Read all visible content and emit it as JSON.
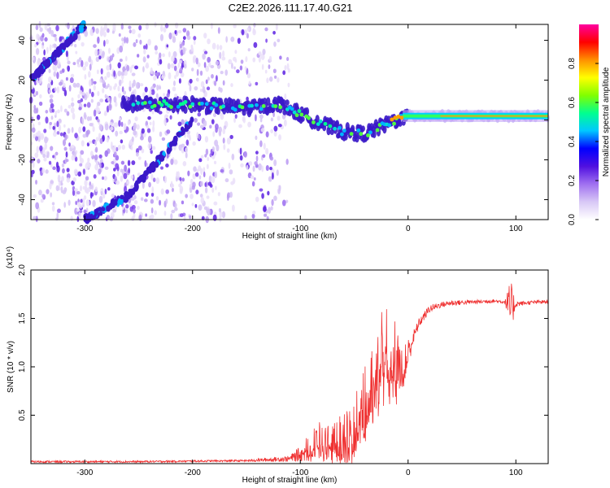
{
  "title": "C2E2.2026.111.17.40.G21",
  "colors": {
    "snr_line": "#ef3030",
    "wave_purple": "#8e5cf0",
    "wave_blue": "#2b2bf0",
    "dark_band": "#3a18c8"
  },
  "chart_data": [
    {
      "type": "heatmap",
      "name": "spectrogram",
      "xlabel": "Height of straight line (km)",
      "ylabel": "Frequency (Hz)",
      "xlim": [
        -350,
        130
      ],
      "ylim": [
        -50,
        48
      ],
      "x_ticks": [
        -300,
        -200,
        -100,
        0,
        100
      ],
      "x_tick_labels": [
        "-300",
        "-200",
        "-100",
        "0",
        "100"
      ],
      "y_ticks": [
        -40,
        -20,
        0,
        20,
        40
      ],
      "y_tick_labels": [
        "-40",
        "-20",
        "0",
        "20",
        "40"
      ],
      "colorbar": {
        "label": "Normalized spectral amplitude",
        "range": [
          0.0,
          1.0
        ],
        "ticks": [
          0.0,
          0.2,
          0.4,
          0.6,
          0.8
        ],
        "tick_labels": [
          "0.0",
          "0.2",
          "0.4",
          "0.6",
          "0.8"
        ],
        "colormap": [
          "#ffffff",
          "#d8c8f6",
          "#a070f0",
          "#5010e0",
          "#0000ff",
          "#00c8ff",
          "#00ff90",
          "#80ff00",
          "#ffff00",
          "#ff9000",
          "#ff0000",
          "#ff00a0"
        ]
      },
      "features": {
        "noise_region_x": [
          -350,
          -120
        ],
        "main_carrier": {
          "x": [
            -260,
            -200,
            -150,
            -120,
            -100,
            -80,
            -60,
            -40,
            -25,
            -10,
            0,
            130
          ],
          "y": [
            8,
            8,
            6,
            8,
            3,
            -2,
            -6,
            -7,
            -3,
            0,
            2,
            2
          ]
        },
        "upper_ghost": {
          "x": [
            -350,
            -300
          ],
          "y": [
            20,
            48
          ]
        },
        "lower_ghost": {
          "x": [
            -300,
            -260,
            -200
          ],
          "y": [
            -50,
            -38,
            0
          ]
        }
      }
    },
    {
      "type": "line",
      "name": "snr",
      "xlabel": "Height of straight line (km)",
      "ylabel": "SNR (10 * v/v)",
      "multiplier": "(x10⁴)",
      "xlim": [
        -350,
        130
      ],
      "ylim": [
        0,
        2.0
      ],
      "x_ticks": [
        -300,
        -200,
        -100,
        0,
        100
      ],
      "x_tick_labels": [
        "-300",
        "-200",
        "-100",
        "0",
        "100"
      ],
      "y_ticks": [
        0.5,
        1.0,
        1.5,
        2.0
      ],
      "y_tick_labels": [
        "0.5",
        "1.0",
        "1.5",
        "2.0"
      ],
      "series": [
        {
          "name": "SNR",
          "x": [
            -350,
            -250,
            -150,
            -110,
            -100,
            -90,
            -80,
            -70,
            -60,
            -50,
            -40,
            -30,
            -25,
            -20,
            -15,
            -10,
            -5,
            0,
            5,
            10,
            20,
            30,
            40,
            60,
            80,
            90,
            95,
            100,
            110,
            120,
            130
          ],
          "y": [
            0.02,
            0.02,
            0.03,
            0.05,
            0.1,
            0.2,
            0.25,
            0.2,
            0.3,
            0.4,
            0.7,
            1.0,
            1.1,
            1.2,
            1.2,
            1.0,
            1.05,
            1.15,
            1.3,
            1.45,
            1.6,
            1.64,
            1.66,
            1.67,
            1.68,
            1.67,
            1.6,
            1.65,
            1.66,
            1.67,
            1.67
          ],
          "noise_amplitude": [
            0.01,
            0.01,
            0.01,
            0.03,
            0.08,
            0.15,
            0.2,
            0.2,
            0.25,
            0.35,
            0.4,
            0.45,
            0.5,
            0.55,
            0.45,
            0.35,
            0.25,
            0.15,
            0.08,
            0.05,
            0.04,
            0.03,
            0.03,
            0.02,
            0.02,
            0.02,
            0.3,
            0.03,
            0.02,
            0.02,
            0.02
          ]
        }
      ]
    }
  ]
}
